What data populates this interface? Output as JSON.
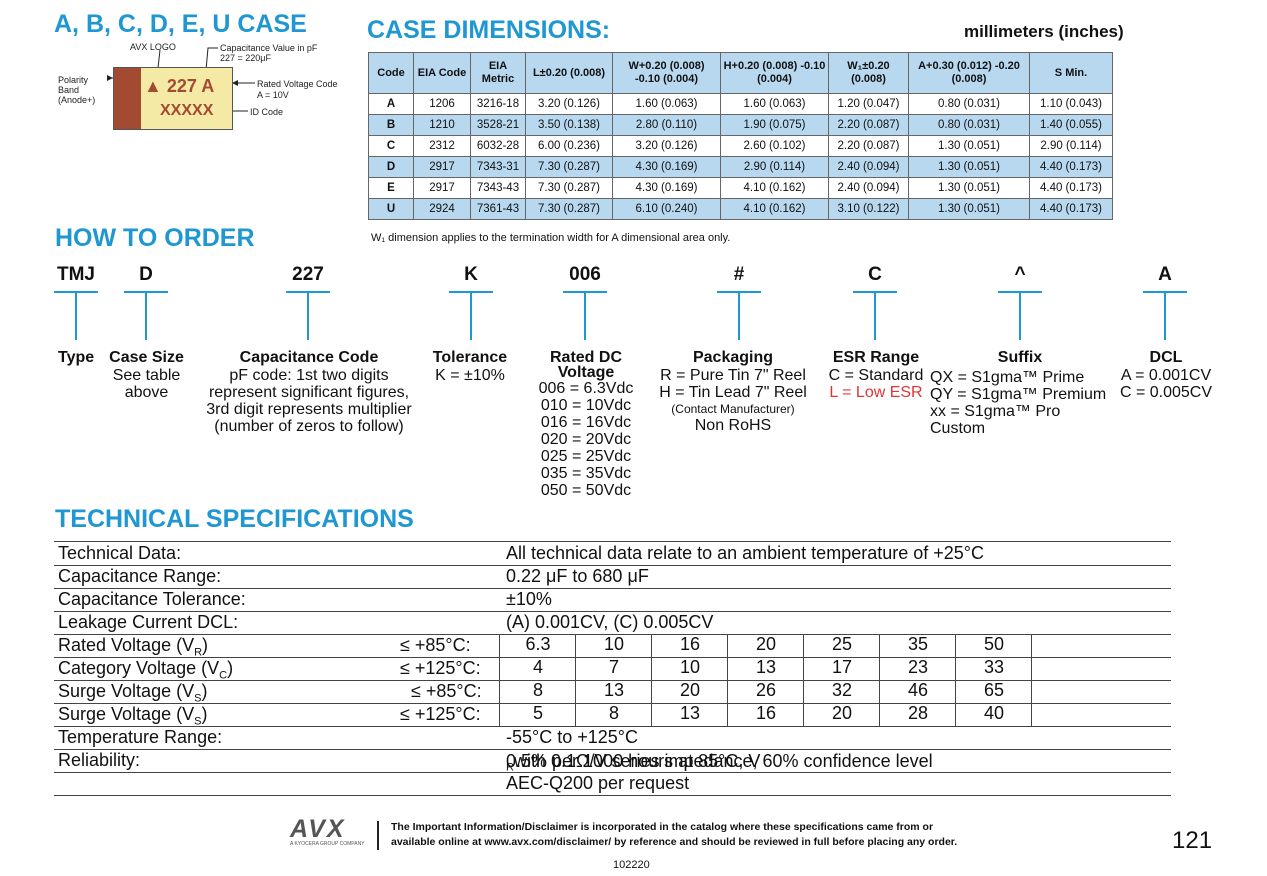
{
  "case_title": "A, B, C, D, E, U CASE",
  "diagram": {
    "avx_logo": "AVX LOGO",
    "cap_value_label": "Capacitance Value in pF",
    "cap_value_example": "227 = 220μF",
    "polarity_1": "Polarity",
    "polarity_2": "Band",
    "polarity_3": "(Anode+)",
    "rated_label": "Rated Voltage Code",
    "rated_example": "A = 10V",
    "id_label": "ID Code",
    "cap_text": "227 A",
    "id_text": "XXXXX"
  },
  "dims": {
    "title": "CASE DIMENSIONS:",
    "units": "millimeters (inches)",
    "headers": [
      "Code",
      "EIA Code",
      "EIA Metric",
      "L±0.20 (0.008)",
      "W+0.20 (0.008) -0.10 (0.004)",
      "H+0.20 (0.008) -0.10 (0.004)",
      "W₁±0.20 (0.008)",
      "A+0.30 (0.012) -0.20 (0.008)",
      "S Min."
    ],
    "rows": [
      [
        "A",
        "1206",
        "3216-18",
        "3.20 (0.126)",
        "1.60 (0.063)",
        "1.60 (0.063)",
        "1.20 (0.047)",
        "0.80 (0.031)",
        "1.10 (0.043)"
      ],
      [
        "B",
        "1210",
        "3528-21",
        "3.50 (0.138)",
        "2.80 (0.110)",
        "1.90 (0.075)",
        "2.20 (0.087)",
        "0.80 (0.031)",
        "1.40 (0.055)"
      ],
      [
        "C",
        "2312",
        "6032-28",
        "6.00 (0.236)",
        "3.20 (0.126)",
        "2.60 (0.102)",
        "2.20 (0.087)",
        "1.30 (0.051)",
        "2.90 (0.114)"
      ],
      [
        "D",
        "2917",
        "7343-31",
        "7.30 (0.287)",
        "4.30 (0.169)",
        "2.90 (0.114)",
        "2.40 (0.094)",
        "1.30 (0.051)",
        "4.40 (0.173)"
      ],
      [
        "E",
        "2917",
        "7343-43",
        "7.30 (0.287)",
        "4.30 (0.169)",
        "4.10 (0.162)",
        "2.40 (0.094)",
        "1.30 (0.051)",
        "4.40 (0.173)"
      ],
      [
        "U",
        "2924",
        "7361-43",
        "7.30 (0.287)",
        "6.10 (0.240)",
        "4.10 (0.162)",
        "3.10 (0.122)",
        "1.30 (0.051)",
        "4.40 (0.173)"
      ]
    ],
    "note": "W₁ dimension applies to the termination width for A dimensional area only."
  },
  "order": {
    "title": "HOW TO ORDER",
    "codes": [
      "TMJ",
      "D",
      "227",
      "K",
      "006",
      "#",
      "C",
      "^",
      "A"
    ],
    "type_label": "Type",
    "case_label": "Case Size",
    "case_text": [
      "See table",
      "above"
    ],
    "cap_label": "Capacitance Code",
    "cap_text": [
      "pF code: 1st two digits",
      "represent significant figures,",
      "3rd digit represents multiplier",
      "(number of zeros to follow)"
    ],
    "tol_label": "Tolerance",
    "tol_text": "K = ±10%",
    "volt_label_1": "Rated DC",
    "volt_label_2": "Voltage",
    "volt_text": [
      "006 = 6.3Vdc",
      "010 = 10Vdc",
      "016 = 16Vdc",
      "020 = 20Vdc",
      "025 = 25Vdc",
      "035 = 35Vdc",
      "050 = 50Vdc"
    ],
    "pkg_label": "Packaging",
    "pkg_text_1": "R = Pure Tin 7\" Reel",
    "pkg_text_2": "H = Tin Lead 7\" Reel",
    "pkg_text_3": "(Contact Manufacturer)",
    "pkg_text_4": "Non RoHS",
    "esr_label": "ESR Range",
    "esr_text_1": "C = Standard",
    "esr_text_2": "L = Low ESR",
    "suffix_label": "Suffix",
    "suffix_text": [
      "QX = S1gma™ Prime",
      "QY = S1gma™ Premium",
      "xx = S1gma™ Pro Custom"
    ],
    "dcl_label": "DCL",
    "dcl_text": [
      "A = 0.001CV",
      "C = 0.005CV"
    ]
  },
  "tech": {
    "title": "TECHNICAL SPECIFICATIONS",
    "technical_data_label": "Technical Data:",
    "technical_data_value": "All technical data relate to an ambient temperature of +25°C",
    "cap_range_label": "Capacitance Range:",
    "cap_range_value": "0.22 μF to 680 μF",
    "cap_tol_label": "Capacitance Tolerance:",
    "cap_tol_value": "±10%",
    "leak_label": "Leakage Current DCL:",
    "leak_value": "(A) 0.001CV, (C) 0.005CV",
    "rated_label": "Rated Voltage (V",
    "rated_sub": "R",
    "rated_cond": "≤ +85°C:",
    "rated_values": [
      "6.3",
      "10",
      "16",
      "20",
      "25",
      "35",
      "50"
    ],
    "cat_label": "Category Voltage (V",
    "cat_sub": "C",
    "cat_cond": "≤ +125°C:",
    "cat_values": [
      "4",
      "7",
      "10",
      "13",
      "17",
      "23",
      "33"
    ],
    "surge1_label": "Surge Voltage (V",
    "surge1_sub": "S",
    "surge1_cond": "≤ +85°C:",
    "surge1_values": [
      "8",
      "13",
      "20",
      "26",
      "32",
      "46",
      "65"
    ],
    "surge2_label": "Surge Voltage (V",
    "surge2_sub": "S",
    "surge2_cond": "≤ +125°C:",
    "surge2_values": [
      "5",
      "8",
      "13",
      "16",
      "20",
      "28",
      "40"
    ],
    "temp_label": "Temperature Range:",
    "temp_value": "-55°C to +125°C",
    "rel_label": "Reliability:",
    "rel_value_1": "0.5% per 1000 hours at 85°C, V",
    "rel_sub": "R",
    "rel_value_2": " with 0.1Ω/V series impedance, 60% confidence level",
    "aec_value": "AEC-Q200 per request"
  },
  "footer": {
    "logo": "AVX",
    "logo_sub": "A KYOCERA GROUP COMPANY",
    "disclaimer_1": "The Important Information/Disclaimer is incorporated in the catalog where these specifications came from or",
    "disclaimer_2": "available online at www.avx.com/disclaimer/ by reference and should be reviewed in full before placing any order.",
    "code": "102220",
    "page": "121"
  }
}
